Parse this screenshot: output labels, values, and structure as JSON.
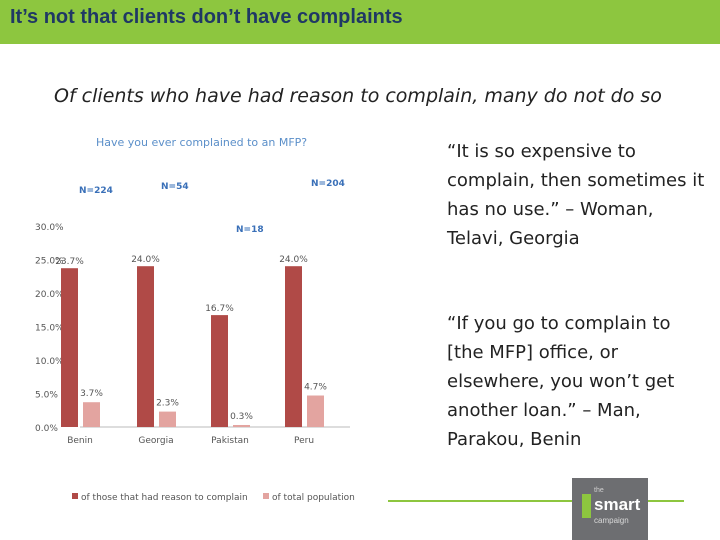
{
  "header": {
    "title": "It’s not that clients don’t have complaints"
  },
  "subtitle": "Of clients who have had reason to complain, many do not do so",
  "quotes": [
    "“It is so expensive to complain, then sometimes it has no use.” – Woman, Telavi, Georgia",
    "“If you go to complain to [the MFP] office, or elsewhere, you won’t get another loan.” – Man, Parakou, Benin"
  ],
  "logo": {
    "small": "the",
    "main": "smart",
    "sub": "campaign"
  },
  "colors": {
    "header": "#8dc63f",
    "series1": "#b04a47",
    "series2": "#e3a4a0",
    "chart_title": "#5b8fc9",
    "n_label": "#3a70b8"
  },
  "chart_data": {
    "type": "bar",
    "title": "Have you ever complained to an MFP?",
    "categories": [
      "Benin",
      "Georgia",
      "Pakistan",
      "Peru"
    ],
    "n_labels": [
      "N=224",
      "N=54",
      "N=18",
      "N=204"
    ],
    "series": [
      {
        "name": "of those that had reason to complain",
        "values": [
          23.7,
          24.0,
          16.7,
          24.0
        ],
        "labels": [
          "23.7%",
          "24.0%",
          "16.7%",
          "24.0%"
        ]
      },
      {
        "name": "of total population",
        "values": [
          3.7,
          2.3,
          0.3,
          4.7
        ],
        "labels": [
          "3.7%",
          "2.3%",
          "0.3%",
          "4.7%"
        ]
      }
    ],
    "yticks": [
      "0.0%",
      "5.0%",
      "10.0%",
      "15.0%",
      "20.0%",
      "25.0%",
      "30.0%"
    ],
    "ylim": [
      0,
      30
    ],
    "grid": false,
    "legend": "bottom"
  }
}
